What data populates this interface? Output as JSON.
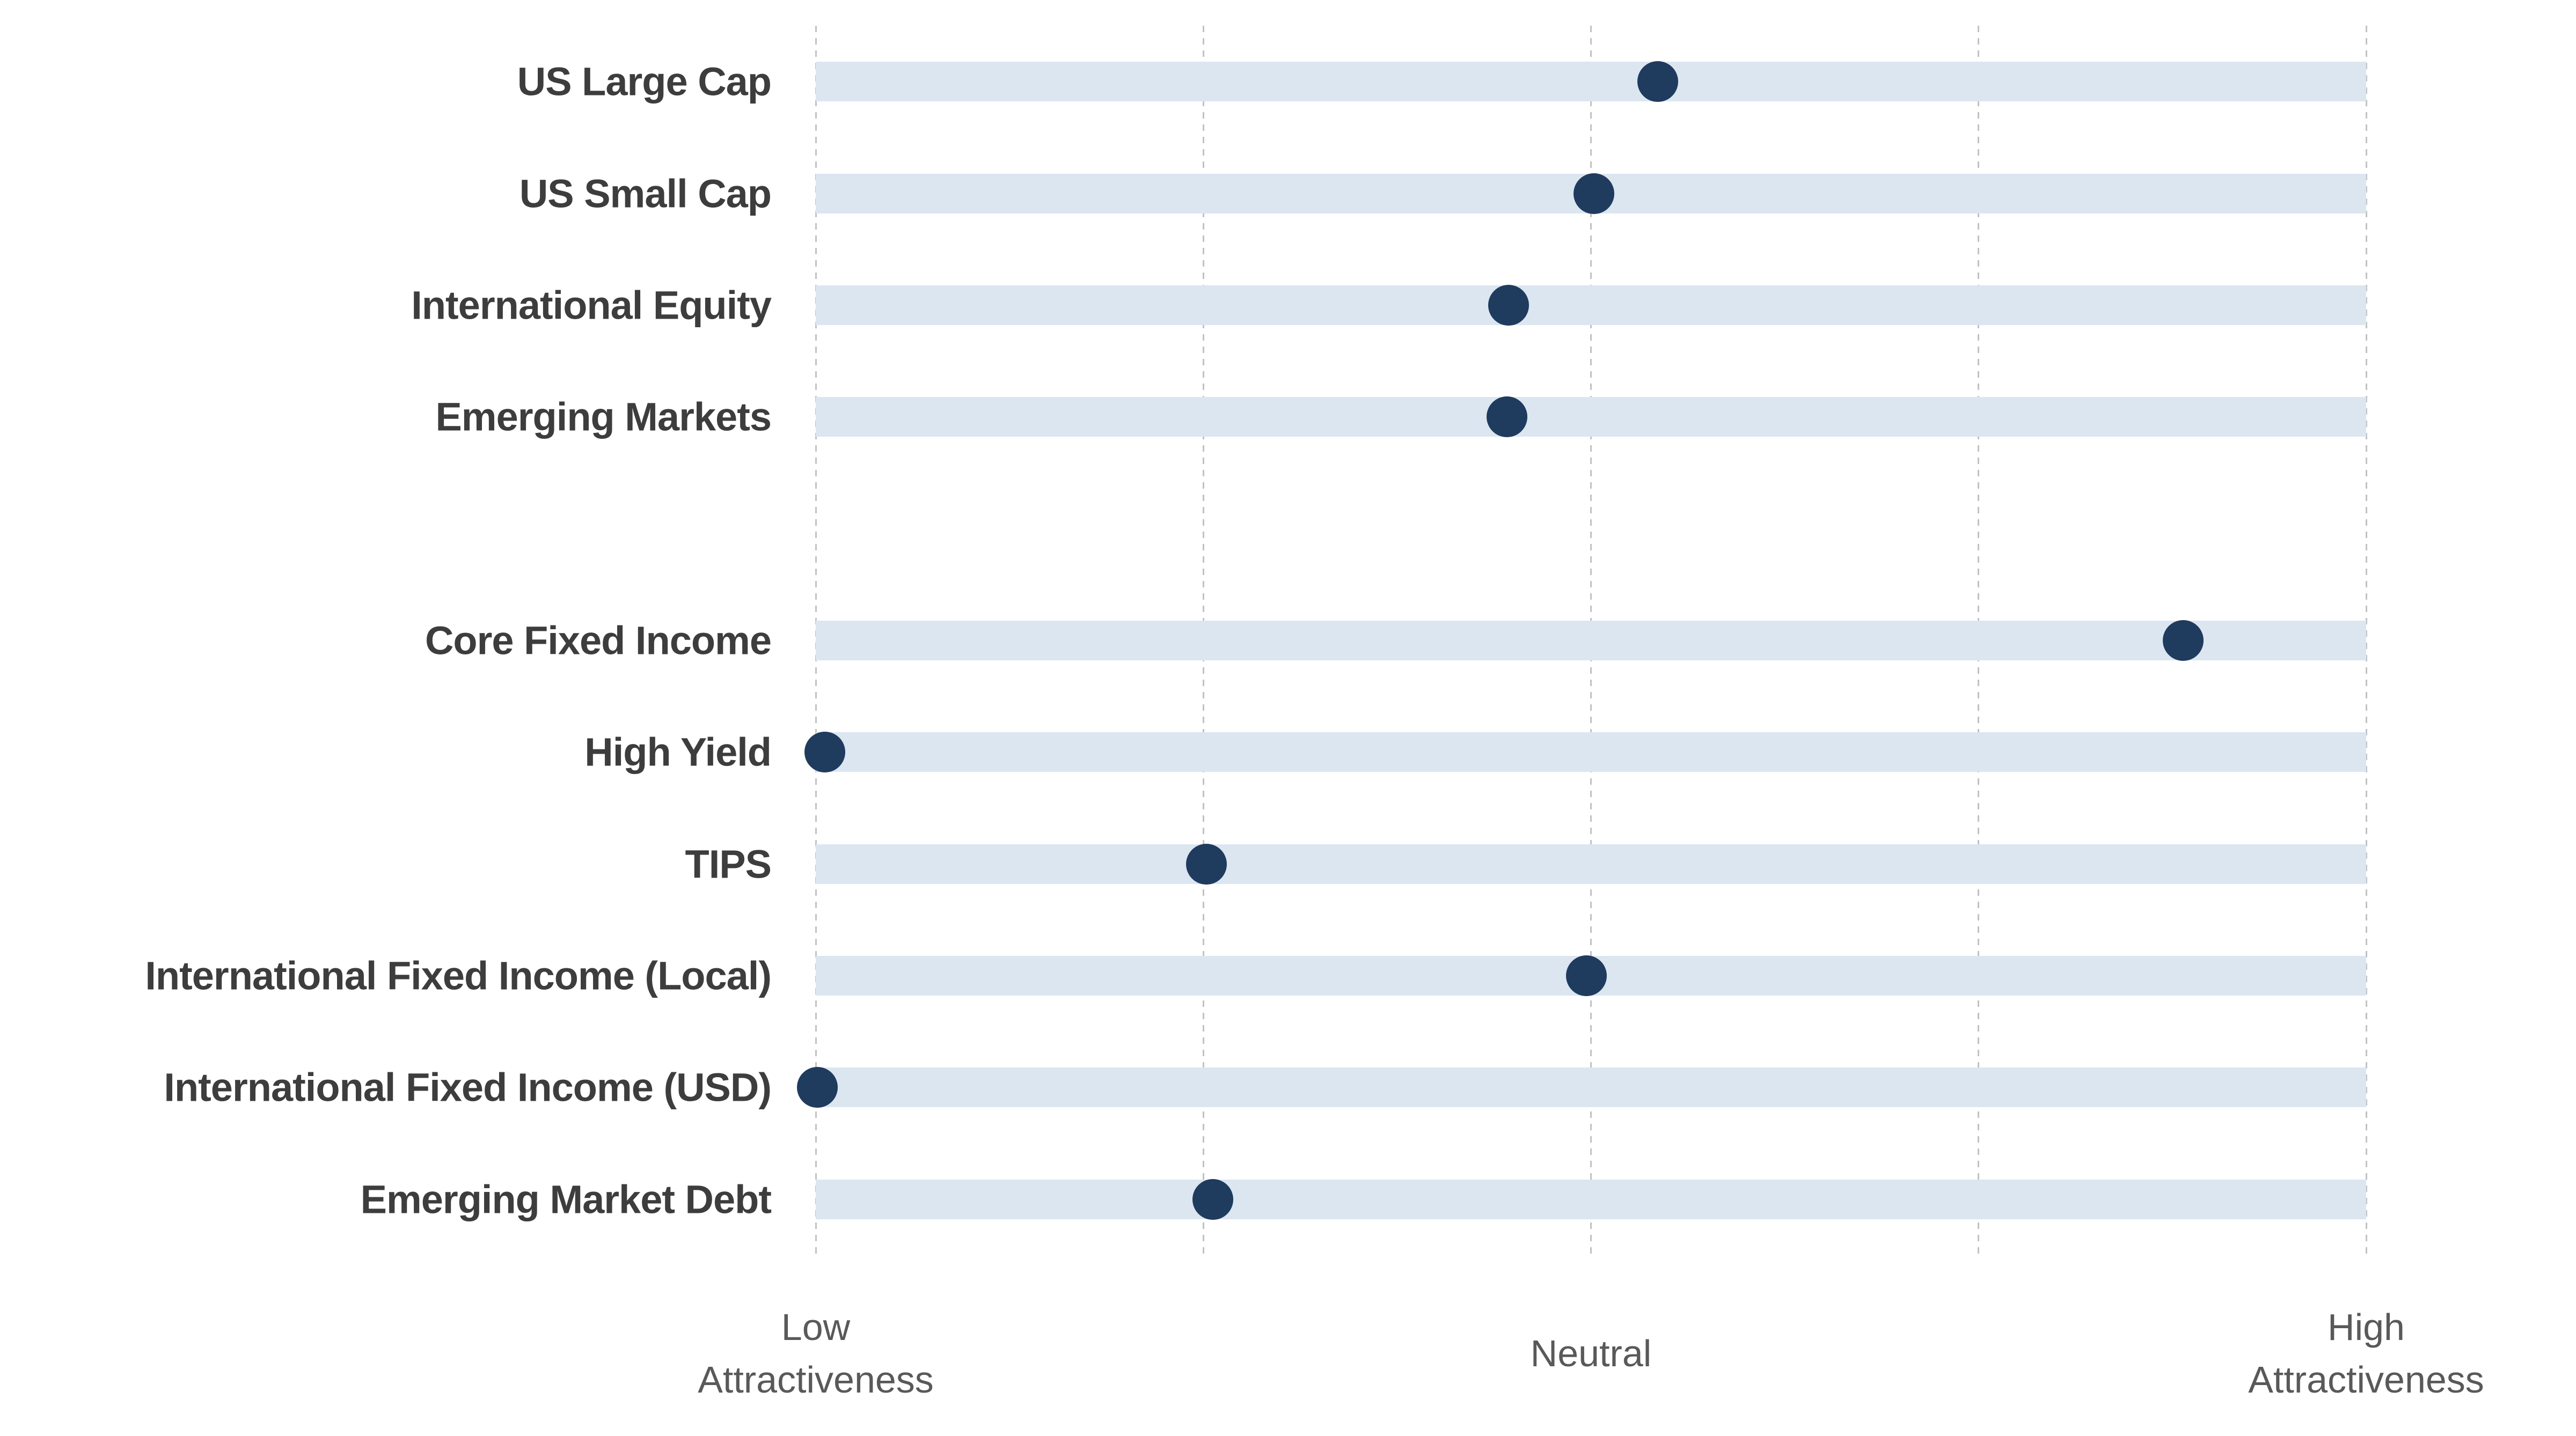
{
  "chart_data": {
    "type": "scatter",
    "subtype": "horizontal-dot-plot",
    "title": "",
    "grid": "vertical dashed gridlines, on",
    "legend": "none",
    "slots_total": 11,
    "blank_slot_note": "slot index 4 is an empty spacer row between equity and fixed income groups",
    "x_axis": {
      "label": "Attractiveness",
      "min": 0,
      "max": 1,
      "gridline_values": [
        0,
        0.25,
        0.5,
        0.75,
        1
      ],
      "tick_labels": [
        {
          "value": 0,
          "lines": [
            "Low",
            "Attractiveness"
          ]
        },
        {
          "value": 0.5,
          "lines": [
            "Neutral"
          ]
        },
        {
          "value": 1,
          "lines": [
            "High",
            "Attractiveness"
          ]
        }
      ]
    },
    "rows": [
      {
        "label": "US Large Cap",
        "slot": 0,
        "value": 0.543
      },
      {
        "label": "US Small Cap",
        "slot": 1,
        "value": 0.502
      },
      {
        "label": "International Equity",
        "slot": 2,
        "value": 0.447
      },
      {
        "label": "Emerging Markets",
        "slot": 3,
        "value": 0.446
      },
      {
        "label": "Core Fixed Income",
        "slot": 5,
        "value": 0.882
      },
      {
        "label": "High Yield",
        "slot": 6,
        "value": 0.006
      },
      {
        "label": "TIPS",
        "slot": 7,
        "value": 0.252
      },
      {
        "label": "International Fixed Income (Local)",
        "slot": 8,
        "value": 0.497
      },
      {
        "label": "International Fixed Income (USD)",
        "slot": 9,
        "value": 0.001
      },
      {
        "label": "Emerging Market Debt",
        "slot": 10,
        "value": 0.256
      }
    ],
    "colors": {
      "dot": "#1f3b5e",
      "band": "#dce6f1",
      "gridline": "#c2c2c2",
      "category_label": "#3d3d3d",
      "tick_label": "#595959",
      "background": "#ffffff"
    }
  }
}
